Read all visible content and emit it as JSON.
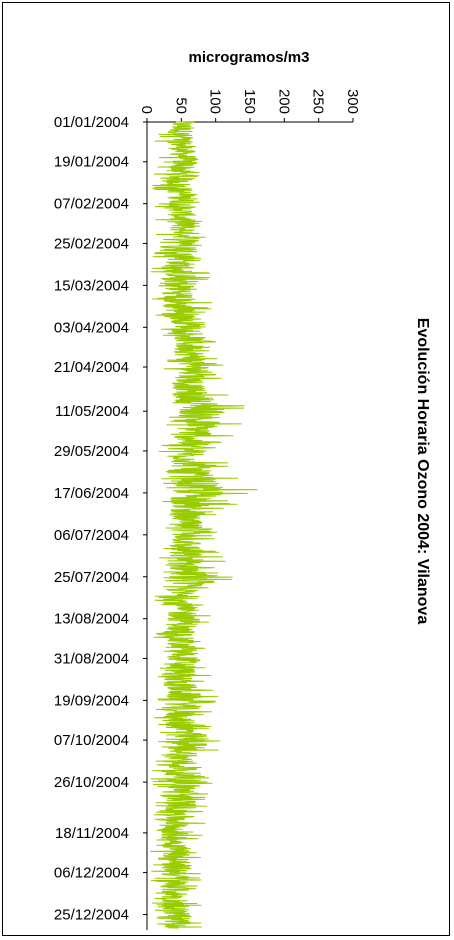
{
  "chart_data": {
    "type": "line",
    "orientation": "vertical-time-axis",
    "title": "Evolución Horaria Ozono 2004: Vilanova",
    "ylabel": "microgramos/m3",
    "xlabel": "",
    "ylim": [
      0,
      300
    ],
    "y_ticks": [
      "0",
      "50",
      "100",
      "150",
      "200",
      "250",
      "300"
    ],
    "x_tick_labels": [
      "01/01/2004",
      "19/01/2004",
      "07/02/2004",
      "25/02/2004",
      "15/03/2004",
      "03/04/2004",
      "21/04/2004",
      "11/05/2004",
      "29/05/2004",
      "17/06/2004",
      "06/07/2004",
      "25/07/2004",
      "13/08/2004",
      "31/08/2004",
      "19/09/2004",
      "07/10/2004",
      "26/10/2004",
      "18/11/2004",
      "06/12/2004",
      "25/12/2004"
    ],
    "legend": "none",
    "grid": false,
    "series_color": "#99CC00",
    "series": [
      {
        "x": [
          "01/01/2004",
          "10/01/2004",
          "19/01/2004",
          "28/01/2004",
          "07/02/2004",
          "16/02/2004",
          "25/02/2004",
          "05/03/2004",
          "15/03/2004",
          "24/03/2004",
          "03/04/2004",
          "12/04/2004",
          "21/04/2004",
          "01/05/2004",
          "11/05/2004",
          "20/05/2004",
          "29/05/2004",
          "08/06/2004",
          "17/06/2004",
          "26/06/2004",
          "06/07/2004",
          "15/07/2004",
          "25/07/2004",
          "03/08/2004",
          "13/08/2004",
          "22/08/2004",
          "31/08/2004",
          "09/09/2004",
          "19/09/2004",
          "28/09/2004",
          "07/10/2004",
          "16/10/2004",
          "26/10/2004",
          "06/11/2004",
          "18/11/2004",
          "27/11/2004",
          "06/12/2004",
          "15/12/2004",
          "25/12/2004"
        ],
        "y_min": [
          5,
          5,
          10,
          5,
          10,
          5,
          15,
          5,
          5,
          5,
          20,
          20,
          25,
          20,
          30,
          25,
          15,
          20,
          25,
          20,
          20,
          15,
          20,
          10,
          15,
          10,
          15,
          10,
          10,
          10,
          15,
          5,
          5,
          10,
          5,
          5,
          5,
          5,
          10
        ],
        "y_mean": [
          50,
          48,
          55,
          45,
          52,
          50,
          62,
          48,
          50,
          45,
          65,
          60,
          70,
          60,
          82,
          72,
          60,
          65,
          75,
          55,
          60,
          55,
          62,
          45,
          55,
          45,
          55,
          45,
          55,
          45,
          65,
          50,
          55,
          50,
          40,
          45,
          42,
          40,
          45
        ],
        "y_max": [
          75,
          70,
          85,
          75,
          82,
          80,
          92,
          85,
          100,
          95,
          108,
          102,
          115,
          105,
          160,
          135,
          118,
          125,
          175,
          100,
          105,
          110,
          130,
          90,
          105,
          90,
          105,
          95,
          110,
          95,
          120,
          90,
          100,
          95,
          80,
          85,
          85,
          80,
          80
        ]
      }
    ]
  }
}
